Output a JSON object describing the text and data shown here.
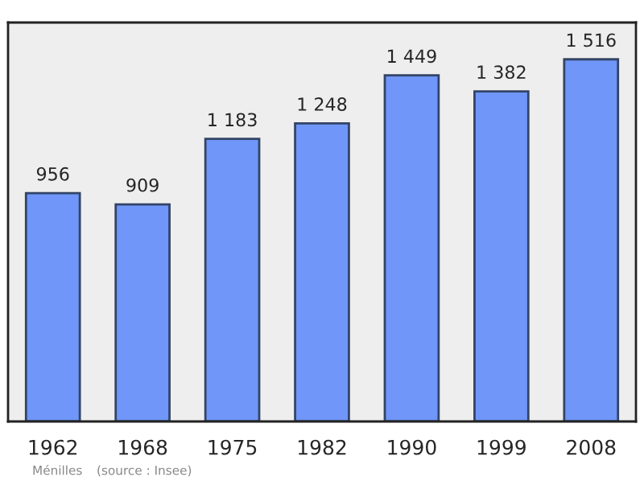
{
  "chart_data": {
    "type": "bar",
    "categories": [
      "1962",
      "1968",
      "1975",
      "1982",
      "1990",
      "1999",
      "2008"
    ],
    "values": [
      956,
      909,
      1183,
      1248,
      1449,
      1382,
      1516
    ],
    "value_labels": [
      "956",
      "909",
      "1 183",
      "1 248",
      "1 449",
      "1 382",
      "1 516"
    ],
    "color": "#6f96f8",
    "ylim": [
      0,
      1670
    ],
    "tick_labels": "x",
    "grid": false,
    "annotations": [
      "Ménilles",
      "(source : Insee)"
    ]
  }
}
